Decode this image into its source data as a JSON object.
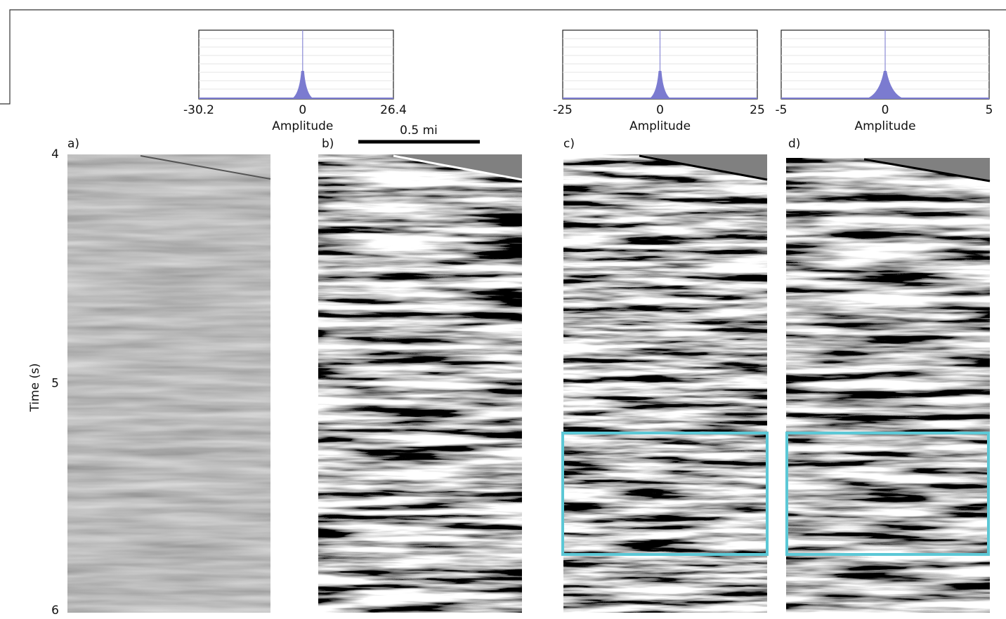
{
  "histograms": [
    {
      "xlabel": "Amplitude",
      "xticks": [
        -30.2,
        0,
        26.4
      ]
    },
    {
      "xlabel": "Amplitude",
      "xticks": [
        -25,
        0,
        25
      ]
    },
    {
      "xlabel": "Amplitude",
      "xticks": [
        -5,
        0,
        5
      ]
    }
  ],
  "panels": [
    {
      "label": "a)"
    },
    {
      "label": "b)"
    },
    {
      "label": "c)"
    },
    {
      "label": "d)"
    }
  ],
  "scale_bar": "0.5 mi",
  "time_axis": {
    "label": "Time (s)",
    "ticks": [
      4,
      5,
      6
    ]
  }
}
